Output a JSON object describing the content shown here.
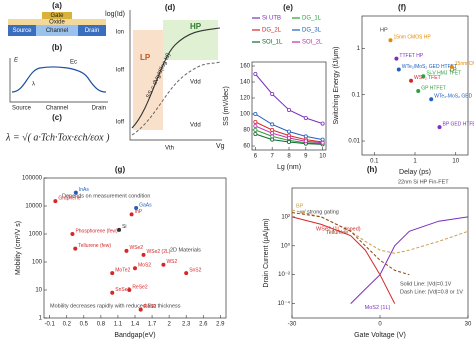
{
  "schematics": {
    "a": {
      "label": "(a)",
      "gate": "Gate",
      "oxide": "Oxide",
      "source": "Source",
      "channel": "Channel",
      "drain": "Drain"
    },
    "b": {
      "label": "(b)",
      "e": "E",
      "ec": "Ec",
      "lambda": "λ",
      "source": "Source",
      "channel": "Channel",
      "drain": "Drain"
    },
    "c": {
      "label": "(c)",
      "formula": "λ = √( a·Tch·Tox·εch/εox )"
    },
    "d": {
      "label": "(d)",
      "ylabel": "log(Id)",
      "xlabel": "Vg",
      "hp": "HP",
      "lp": "LP",
      "ion": "Ion",
      "ioff": "Ioff",
      "ioff2": "Ioff",
      "vdd": "Vdd",
      "vdd2": "Vdd",
      "vth": "Vth",
      "ss": "SS = dVg/d(log Id)"
    }
  },
  "chart_data": [
    {
      "type": "line",
      "label": "(e)",
      "xlabel": "Lg (nm)",
      "ylabel": "SS (mV/dec)",
      "legend": "top",
      "x": [
        6,
        7,
        8,
        9,
        10
      ],
      "xlim": [
        5.8,
        10.2
      ],
      "xticks": [
        6,
        7,
        8,
        9,
        10
      ],
      "ylim": [
        55,
        165
      ],
      "yticks": [
        60,
        80,
        100,
        120,
        140,
        160
      ],
      "series": [
        {
          "name": "Si UTB",
          "color": "#7b2fbe",
          "values": [
            150,
            125,
            105,
            95,
            88
          ]
        },
        {
          "name": "DG_1L",
          "color": "#2e9e3e",
          "values": [
            80,
            72,
            67,
            64,
            63
          ]
        },
        {
          "name": "DG_2L",
          "color": "#d62728",
          "values": [
            90,
            80,
            73,
            68,
            65
          ]
        },
        {
          "name": "DG_3L",
          "color": "#1f5fbf",
          "values": [
            100,
            87,
            78,
            72,
            68
          ]
        },
        {
          "name": "SOI_1L",
          "color": "#0b6b2a",
          "values": [
            75,
            68,
            65,
            63,
            62
          ]
        },
        {
          "name": "SOI_2L",
          "color": "#c22fa8",
          "values": [
            85,
            76,
            70,
            66,
            64
          ]
        }
      ]
    },
    {
      "type": "scatter",
      "label": "(f)",
      "xlabel": "Delay (ps)",
      "ylabel": "Switching Energy (fJ/μm)",
      "xscale": "log",
      "yscale": "log",
      "xlim": [
        0.05,
        20
      ],
      "xticks": [
        0.1,
        1,
        10
      ],
      "ylim": [
        0.005,
        5
      ],
      "yticks": [
        0.01,
        0.1,
        1
      ],
      "x": [
        0.25,
        0.35,
        0.4,
        0.8,
        1.6,
        1.2,
        2.5,
        8,
        4
      ],
      "values": [
        1.5,
        0.6,
        0.35,
        0.2,
        0.25,
        0.12,
        0.08,
        0.4,
        0.02
      ],
      "point_labels": [
        "15nm CMOS HP",
        "TTFET HP",
        "WTe₂/MoS₂ GED HTFET",
        "WSe₂ TFET",
        "Si-V HMJ TFET",
        "GP HTFET",
        "WTe₂-MoS₂ GED HTFET",
        "15nm CMOS LP",
        "BP GED HTFET"
      ],
      "colors": [
        "#e08a00",
        "#7b2fbe",
        "#1f5fbf",
        "#d62728",
        "#2e9e3e",
        "#2e9e3e",
        "#1f5fbf",
        "#e08a00",
        "#7b2fbe"
      ],
      "annotations": [
        "HP",
        "LP"
      ]
    },
    {
      "type": "scatter",
      "label": "(g)",
      "xlabel": "Bandgap(eV)",
      "ylabel": "Mobility (cm²/V s)",
      "yscale": "log",
      "xlim": [
        -0.2,
        3.0
      ],
      "xticks": [
        -0.1,
        0.2,
        0.5,
        0.8,
        1.1,
        1.4,
        1.7,
        2,
        2.3,
        2.6,
        2.9
      ],
      "ylim": [
        1,
        100000
      ],
      "yticks": [
        1,
        10,
        100,
        1000,
        10000,
        100000
      ],
      "x": [
        0,
        0.36,
        0.3,
        1.12,
        1.42,
        1.34,
        0.35,
        1.25,
        1.55,
        1.4,
        1.0,
        1.0,
        1.3,
        2.3,
        1.5,
        1.9
      ],
      "values": [
        15000,
        30000,
        1000,
        1400,
        8500,
        5000,
        300,
        250,
        180,
        60,
        40,
        8,
        10,
        40,
        2,
        80
      ],
      "point_labels": [
        "Graphene",
        "InAs",
        "Phosphorene (few)",
        "Si",
        "GaAs",
        "InP",
        "Tellurene (few)",
        "WSe2",
        "WSe2 (2L)",
        "MoS2",
        "MoTe2",
        "SnSe2",
        "ReSe2",
        "SnS2",
        "ReS2",
        "WS2"
      ],
      "colors": [
        "#d62728",
        "#1f5fbf",
        "#d62728",
        "#333333",
        "#1f5fbf",
        "#d62728",
        "#d62728",
        "#d62728",
        "#d62728",
        "#d62728",
        "#d62728",
        "#d62728",
        "#d62728",
        "#d62728",
        "#d62728",
        "#d62728"
      ],
      "annotations": [
        "Depends on measurement condition",
        "2D Materials",
        "Mobility decreases rapidly with reduced film thickness"
      ]
    },
    {
      "type": "line",
      "label": "(h)",
      "xlabel": "Gate Voltage (V)",
      "ylabel": "Drain Current (μA/μm)",
      "yscale": "log",
      "x": [
        -30,
        -20,
        -10,
        -5,
        0,
        5,
        10,
        20,
        30
      ],
      "xlim": [
        -30,
        30
      ],
      "xticks": [
        -30,
        0,
        30
      ],
      "ylim": [
        1e-05,
        10000
      ],
      "yticks": [
        {
          "value": 0.0001,
          "label": "10⁻⁴"
        },
        {
          "value": 0.01,
          "label": "10⁻²"
        },
        {
          "value": 1,
          "label": "10⁰"
        },
        {
          "value": 100,
          "label": "10²"
        }
      ],
      "series": [
        {
          "name": "BP",
          "color": "#c8a050",
          "dash": true,
          "values": [
            300,
            100,
            10,
            2,
            0.5,
            0.3,
            0.5,
            2,
            10
          ]
        },
        {
          "name": "MoS2 (1L)",
          "color": "#7b2fbe",
          "dash": false,
          "values": [
            null,
            null,
            0.0001,
            0.001,
            0.01,
            1,
            10,
            50,
            100
          ]
        },
        {
          "name": "WSe2 (1L, doped)",
          "color": "#d62728",
          "dash": false,
          "values": [
            100,
            30,
            5,
            0.5,
            0.01,
            0.0001,
            null,
            null,
            null
          ]
        },
        {
          "name": "Tellurene",
          "color": "#8b4513",
          "dash": true,
          "values": [
            200,
            100,
            10,
            1,
            0.1,
            0.02,
            0.01,
            null,
            null
          ]
        }
      ],
      "annotations": [
        "22nm Si HP Fin-FET",
        "w/ strong gating",
        "Solid Line: |Vd|=0.1V",
        "Dash Line: |Vd|=0.8 or 1V"
      ]
    }
  ]
}
